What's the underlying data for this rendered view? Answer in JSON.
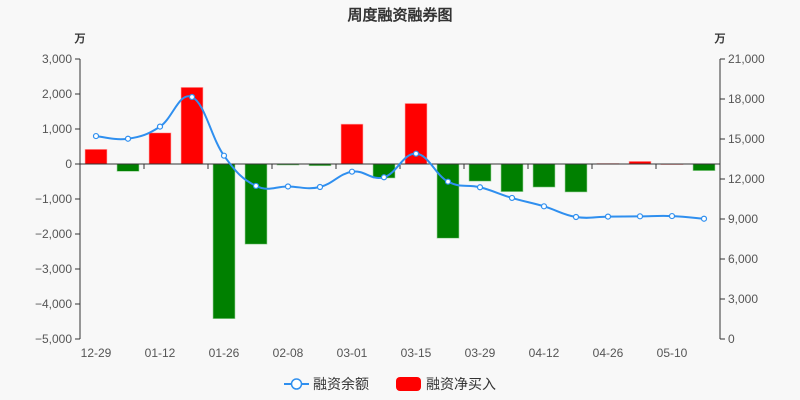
{
  "chart_data": {
    "type": "bar+line",
    "title": "周度融资融券图",
    "categories": [
      "12-29",
      "",
      "01-12",
      "",
      "01-26",
      "",
      "02-08",
      "",
      "03-01",
      "",
      "03-15",
      "",
      "03-29",
      "",
      "04-12",
      "",
      "04-26",
      "",
      "05-10",
      ""
    ],
    "x_tick_labels": [
      "12-29",
      "01-12",
      "01-26",
      "02-08",
      "03-01",
      "03-15",
      "03-29",
      "04-12",
      "04-26",
      "05-10"
    ],
    "left_axis": {
      "unit": "万",
      "ylim": [
        -5000,
        3000
      ],
      "ticks": [
        3000,
        2000,
        1000,
        0,
        -1000,
        -2000,
        -3000,
        -4000,
        -5000
      ],
      "tick_labels": [
        "3,000",
        "2,000",
        "1,000",
        "0",
        "−1,000",
        "−2,000",
        "−3,000",
        "−4,000",
        "−5,000"
      ]
    },
    "right_axis": {
      "unit": "万",
      "ylim": [
        0,
        21000
      ],
      "ticks": [
        21000,
        18000,
        15000,
        12000,
        9000,
        6000,
        3000,
        0
      ],
      "tick_labels": [
        "21,000",
        "18,000",
        "15,000",
        "12,000",
        "9,000",
        "6,000",
        "3,000",
        "0"
      ]
    },
    "series": [
      {
        "name": "融资余额",
        "type": "line",
        "axis": "right",
        "color": "#2f8fef",
        "values": [
          15220,
          15020,
          15930,
          18150,
          13750,
          11480,
          11440,
          11400,
          12550,
          12130,
          13900,
          11800,
          11380,
          10580,
          9950,
          9150,
          9180,
          9200,
          9220,
          9020
        ]
      },
      {
        "name": "融资净买入",
        "type": "bar",
        "axis": "left",
        "positive_color": "#ff0000",
        "negative_color": "#008000",
        "values": [
          420,
          -210,
          890,
          2190,
          -4420,
          -2290,
          -30,
          -50,
          1140,
          -400,
          1730,
          -2120,
          -490,
          -790,
          -660,
          -800,
          15,
          75,
          5,
          -190
        ]
      }
    ],
    "grid": false,
    "legend_position": "bottom"
  },
  "legend": {
    "items": [
      {
        "label": "融资余额",
        "icon": "line-circle-icon"
      },
      {
        "label": "融资净买入",
        "icon": "red-rect-icon"
      }
    ]
  },
  "colors": {
    "background": "#f8f8f8",
    "axis": "#333333",
    "line": "#2f8fef",
    "bar_positive": "#ff0000",
    "bar_negative": "#008000"
  }
}
